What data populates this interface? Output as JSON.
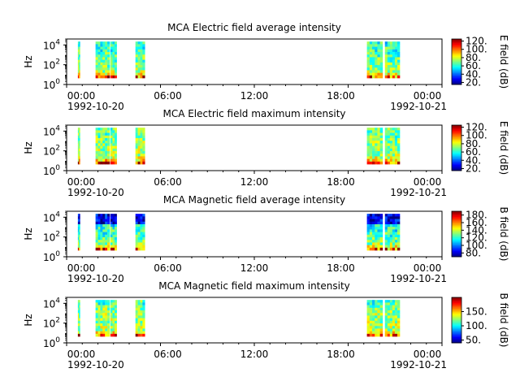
{
  "chart_data": [
    {
      "type": "heatmap",
      "title": "MCA  Electric field average intensity",
      "ylabel": "Hz",
      "y_scale": "log",
      "y_ticks": [
        {
          "value": 1,
          "base": "10",
          "exp": "0"
        },
        {
          "value": 100,
          "base": "10",
          "exp": "2"
        },
        {
          "value": 10000,
          "base": "10",
          "exp": "4"
        }
      ],
      "y_range": [
        1,
        40000
      ],
      "x_ticks": [
        "00:00",
        "06:00",
        "12:00",
        "18:00",
        "00:00"
      ],
      "x_start_date": "1992-10-20",
      "x_end_date": "1992-10-21",
      "x_range_hours": [
        0,
        24
      ],
      "colorbar_label": "E field (dB)",
      "colorbar_ticks": [
        "20.",
        "40.",
        "60.",
        "80.",
        "100.",
        "120."
      ],
      "colorbar_range": [
        15,
        125
      ],
      "data_intervals_hours": [
        [
          0.02,
          0.15
        ],
        [
          1.15,
          2.05
        ],
        [
          2.1,
          2.5
        ],
        [
          3.7,
          4.3
        ],
        [
          18.5,
          19.5
        ],
        [
          19.65,
          20.6
        ]
      ]
    },
    {
      "type": "heatmap",
      "title": "MCA  Electric field maximum intensity",
      "ylabel": "Hz",
      "y_scale": "log",
      "y_ticks": [
        {
          "value": 1,
          "base": "10",
          "exp": "0"
        },
        {
          "value": 100,
          "base": "10",
          "exp": "2"
        },
        {
          "value": 10000,
          "base": "10",
          "exp": "4"
        }
      ],
      "y_range": [
        1,
        40000
      ],
      "x_ticks": [
        "00:00",
        "06:00",
        "12:00",
        "18:00",
        "00:00"
      ],
      "x_start_date": "1992-10-20",
      "x_end_date": "1992-10-21",
      "x_range_hours": [
        0,
        24
      ],
      "colorbar_label": "E field (dB)",
      "colorbar_ticks": [
        "20.",
        "40.",
        "60.",
        "80.",
        "100.",
        "120."
      ],
      "colorbar_range": [
        15,
        125
      ],
      "data_intervals_hours": [
        [
          0.02,
          0.15
        ],
        [
          1.15,
          2.05
        ],
        [
          2.1,
          2.5
        ],
        [
          3.7,
          4.3
        ],
        [
          18.5,
          19.5
        ],
        [
          19.65,
          20.6
        ]
      ]
    },
    {
      "type": "heatmap",
      "title": "MCA  Magnetic field average intensity",
      "ylabel": "Hz",
      "y_scale": "log",
      "y_ticks": [
        {
          "value": 1,
          "base": "10",
          "exp": "0"
        },
        {
          "value": 100,
          "base": "10",
          "exp": "2"
        },
        {
          "value": 10000,
          "base": "10",
          "exp": "4"
        }
      ],
      "y_range": [
        1,
        40000
      ],
      "x_ticks": [
        "00:00",
        "06:00",
        "12:00",
        "18:00",
        "00:00"
      ],
      "x_start_date": "1992-10-20",
      "x_end_date": "1992-10-21",
      "x_range_hours": [
        0,
        24
      ],
      "colorbar_label": "B field (dB)",
      "colorbar_ticks": [
        "80.",
        "100.",
        "120.",
        "140.",
        "160.",
        "180."
      ],
      "colorbar_range": [
        70,
        190
      ],
      "data_intervals_hours": [
        [
          0.02,
          0.15
        ],
        [
          1.15,
          2.05
        ],
        [
          2.1,
          2.5
        ],
        [
          3.7,
          4.3
        ],
        [
          18.5,
          19.5
        ],
        [
          19.65,
          20.6
        ]
      ]
    },
    {
      "type": "heatmap",
      "title": "MCA  Magnetic field maximum intensity",
      "ylabel": "Hz",
      "y_scale": "log",
      "y_ticks": [
        {
          "value": 1,
          "base": "10",
          "exp": "0"
        },
        {
          "value": 100,
          "base": "10",
          "exp": "2"
        },
        {
          "value": 10000,
          "base": "10",
          "exp": "4"
        }
      ],
      "y_range": [
        1,
        40000
      ],
      "x_ticks": [
        "00:00",
        "06:00",
        "12:00",
        "18:00",
        "00:00"
      ],
      "x_start_date": "1992-10-20",
      "x_end_date": "1992-10-21",
      "x_range_hours": [
        0,
        24
      ],
      "colorbar_label": "B field (dB)",
      "colorbar_ticks": [
        "50.",
        "100.",
        "150."
      ],
      "colorbar_range": [
        40,
        200
      ],
      "data_intervals_hours": [
        [
          0.02,
          0.15
        ],
        [
          1.15,
          2.05
        ],
        [
          2.1,
          2.5
        ],
        [
          3.7,
          4.3
        ],
        [
          18.5,
          19.5
        ],
        [
          19.65,
          20.6
        ]
      ]
    }
  ]
}
